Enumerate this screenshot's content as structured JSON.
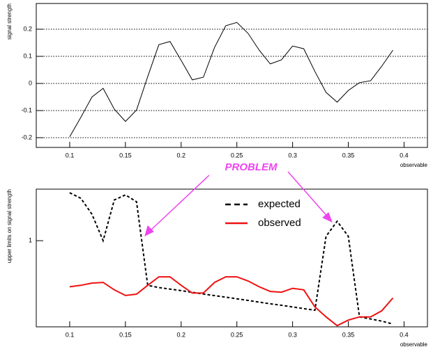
{
  "chart_data": [
    {
      "type": "line",
      "x_label": "observable",
      "y_label": "signal strength",
      "x": [
        0.1,
        0.11,
        0.12,
        0.13,
        0.14,
        0.15,
        0.16,
        0.17,
        0.18,
        0.19,
        0.2,
        0.21,
        0.22,
        0.23,
        0.24,
        0.25,
        0.26,
        0.27,
        0.28,
        0.29,
        0.3,
        0.31,
        0.32,
        0.33,
        0.34,
        0.35,
        0.36,
        0.37,
        0.38,
        0.39
      ],
      "values": [
        -0.197,
        -0.125,
        -0.05,
        -0.018,
        -0.095,
        -0.14,
        -0.098,
        0.025,
        0.143,
        0.155,
        0.085,
        0.013,
        0.023,
        0.133,
        0.213,
        0.225,
        0.185,
        0.123,
        0.072,
        0.087,
        0.138,
        0.128,
        0.044,
        -0.033,
        -0.069,
        -0.026,
        0.003,
        0.01,
        0.064,
        0.123
      ],
      "color": "#000000",
      "xlim": [
        0.07,
        0.421
      ],
      "ylim": [
        -0.236,
        0.295
      ],
      "xticks": [
        0.1,
        0.15,
        0.2,
        0.25,
        0.3,
        0.35,
        0.4
      ],
      "yticks": [
        -0.2,
        -0.1,
        0,
        0.1,
        0.2
      ],
      "grid": true,
      "log_y": false
    },
    {
      "type": "line",
      "x_label": "observable",
      "y_label": "upper limits on signal strength",
      "annotation": "PROBLEM",
      "x": [
        0.1,
        0.11,
        0.12,
        0.13,
        0.14,
        0.15,
        0.16,
        0.17,
        0.18,
        0.19,
        0.2,
        0.21,
        0.22,
        0.23,
        0.24,
        0.25,
        0.26,
        0.27,
        0.28,
        0.29,
        0.3,
        0.31,
        0.32,
        0.33,
        0.34,
        0.35,
        0.36,
        0.37,
        0.38,
        0.39
      ],
      "series": [
        {
          "name": "expected",
          "color": "#000000",
          "line_style": "dashed",
          "values": [
            1.7,
            1.6,
            1.34,
            1.0,
            1.57,
            1.66,
            1.54,
            0.61,
            0.595,
            0.585,
            0.575,
            0.564,
            0.554,
            0.544,
            0.535,
            0.525,
            0.516,
            0.506,
            0.497,
            0.489,
            0.48,
            0.471,
            0.463,
            1.05,
            1.24,
            1.05,
            0.43,
            0.42,
            0.41,
            0.397
          ]
        },
        {
          "name": "observed",
          "color": "#ee1111",
          "line_style": "solid",
          "values": [
            0.6,
            0.61,
            0.625,
            0.63,
            0.58,
            0.545,
            0.553,
            0.61,
            0.67,
            0.67,
            0.61,
            0.56,
            0.56,
            0.63,
            0.67,
            0.67,
            0.64,
            0.6,
            0.57,
            0.565,
            0.59,
            0.58,
            0.48,
            0.43,
            0.39,
            0.415,
            0.43,
            0.43,
            0.46,
            0.53
          ]
        }
      ],
      "xlim": [
        0.07,
        0.421
      ],
      "ylim": [
        0.385,
        1.77
      ],
      "xticks": [
        0.1,
        0.15,
        0.2,
        0.25,
        0.3,
        0.35,
        0.4
      ],
      "yticks": [
        1
      ],
      "grid": false,
      "log_y": true,
      "legend_position": "upper right"
    }
  ]
}
